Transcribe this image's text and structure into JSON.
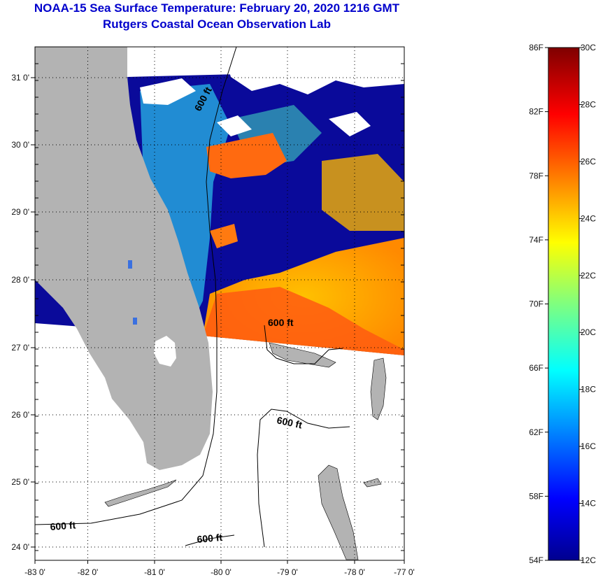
{
  "title": {
    "line1": "NOAA-15 Sea Surface Temperature:  February 20, 2020 1216 GMT",
    "line2": "Rutgers Coastal Ocean Observation Lab"
  },
  "map": {
    "lon_ticks": [
      "-83 0'",
      "-82 0'",
      "-81 0'",
      "-80 0'",
      "-79 0'",
      "-78 0'",
      "-77 0'"
    ],
    "lat_ticks": [
      "31 0'",
      "30 0'",
      "29 0'",
      "28 0'",
      "27 0'",
      "26 0'",
      "25 0'",
      "24 0'"
    ],
    "contour_label": "600 ft",
    "colors": {
      "land": "#b3b3b3",
      "cloud": "#ffffff",
      "cold": "#0a0a9a",
      "warm": "#ff6a10"
    }
  },
  "colorbar": {
    "fahrenheit": [
      "86F",
      "82F",
      "78F",
      "74F",
      "70F",
      "66F",
      "62F",
      "58F",
      "54F"
    ],
    "celsius": [
      "30C",
      "28C",
      "26C",
      "24C",
      "22C",
      "20C",
      "18C",
      "16C",
      "14C",
      "12C"
    ]
  }
}
